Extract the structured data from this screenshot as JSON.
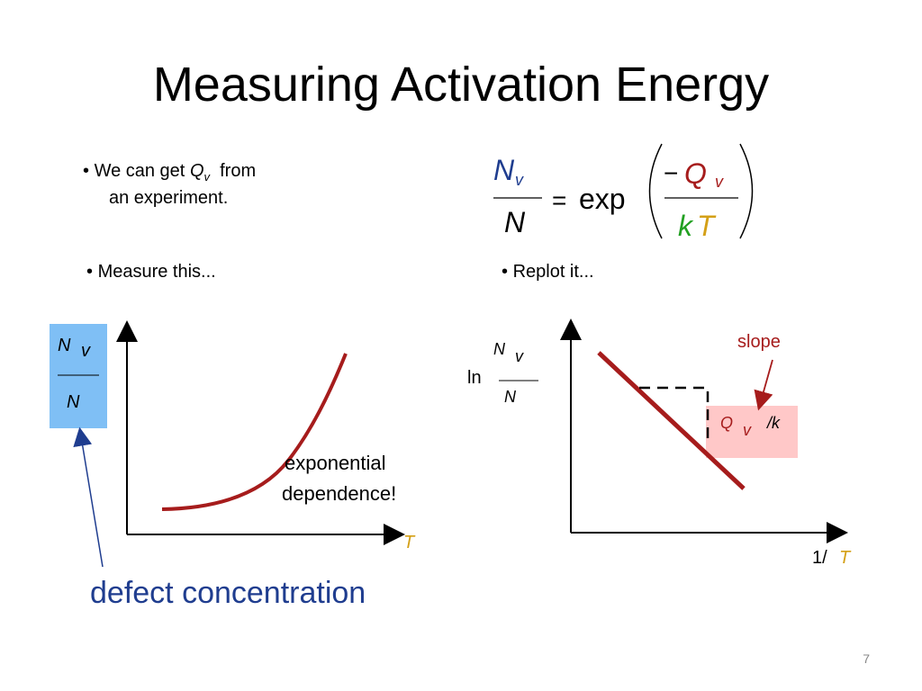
{
  "title": "Measuring Activation Energy",
  "bullets": {
    "b1_pre": "We can get",
    "b1_Q": "Q",
    "b1_sub": "v",
    "b1_post": "from",
    "b1_line2": "an experiment.",
    "b2": "Measure this...",
    "b3": "Replot it..."
  },
  "equation": {
    "N": "N",
    "v": "v",
    "equals": "=",
    "exp": "exp",
    "minus": "−",
    "Q": "Q",
    "k": "k",
    "T": "T"
  },
  "left_graph": {
    "y_N": "N",
    "y_v": "v",
    "y_den": "N",
    "x_label": "T",
    "annotation_line1": "exponential",
    "annotation_line2": "dependence!",
    "curve_description": "exponential increase"
  },
  "right_graph": {
    "ln": "ln",
    "y_N": "N",
    "y_v": "v",
    "y_den": "N",
    "x_label_pre": "1/",
    "x_label_T": "T",
    "slope_label": "slope",
    "box_Q": "Q",
    "box_v": "v",
    "box_k": "/k"
  },
  "defect_label": "defect concentration",
  "page_number": "7",
  "colors": {
    "blue_text": "#1f3d8f",
    "red_curve": "#a61c1c",
    "green_k": "#22a022",
    "orange_T": "#d4a017",
    "blue_box": "#7fbff5",
    "pink_box": "#ffc8c8"
  }
}
